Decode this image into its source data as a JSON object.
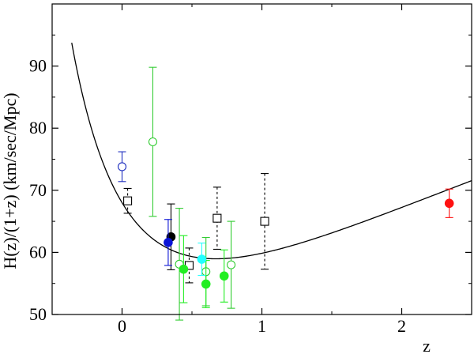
{
  "chart_data": {
    "type": "scatter",
    "title": "",
    "xlabel": "z",
    "ylabel": "H(z)/(1+z)  (km/sec/Mpc)",
    "xlim": [
      -0.5,
      2.5
    ],
    "ylim": [
      50,
      100
    ],
    "x_ticks": [
      0,
      1,
      2
    ],
    "y_ticks": [
      50,
      60,
      70,
      80,
      90
    ],
    "x_tick_labels": [
      "0",
      "1",
      "2"
    ],
    "y_tick_labels": [
      "50",
      "60",
      "70",
      "80",
      "90"
    ],
    "grid": false,
    "legend": "none",
    "model_curve": {
      "H0": 68,
      "Omega_m": 0.3,
      "x_start": -0.36,
      "x_end": 2.5,
      "color": "#000000"
    },
    "series": [
      {
        "marker": "open-circle",
        "color": "#1f2fbf",
        "errorbar": "solid",
        "points": [
          {
            "x": 0.0,
            "y": 73.8,
            "err": 2.4
          }
        ]
      },
      {
        "marker": "open-square",
        "color": "#000000",
        "errorbar": "dashed",
        "points": [
          {
            "x": 0.04,
            "y": 68.3,
            "err": 2.0
          },
          {
            "x": 0.48,
            "y": 57.9,
            "err": 2.8
          },
          {
            "x": 0.68,
            "y": 65.5,
            "err": 5.0
          },
          {
            "x": 1.02,
            "y": 65.0,
            "err": 7.7
          }
        ]
      },
      {
        "marker": "open-circle",
        "color": "#33cc33",
        "errorbar": "solid",
        "points": [
          {
            "x": 0.22,
            "y": 77.8,
            "err": 12.0
          },
          {
            "x": 0.41,
            "y": 58.1,
            "err": 9.0
          },
          {
            "x": 0.6,
            "y": 56.9,
            "err": 5.5
          },
          {
            "x": 0.78,
            "y": 58.0,
            "err": 7.0
          }
        ]
      },
      {
        "marker": "filled-circle",
        "color": "#000000",
        "errorbar": "solid",
        "points": [
          {
            "x": 0.35,
            "y": 62.5,
            "err": 5.3
          }
        ]
      },
      {
        "marker": "filled-circle",
        "color": "#0a14d6",
        "errorbar": "solid",
        "points": [
          {
            "x": 0.33,
            "y": 61.6,
            "err": 3.7
          }
        ]
      },
      {
        "marker": "filled-circle",
        "color": "#22ee22",
        "errorbar": "solid",
        "points": [
          {
            "x": 0.44,
            "y": 57.3,
            "err": 5.4
          },
          {
            "x": 0.6,
            "y": 54.9,
            "err": 3.8
          },
          {
            "x": 0.73,
            "y": 56.2,
            "err": 4.2
          }
        ]
      },
      {
        "marker": "filled-circle",
        "color": "#22ffff",
        "errorbar": "solid",
        "points": [
          {
            "x": 0.57,
            "y": 58.9,
            "err": 2.6
          }
        ]
      },
      {
        "marker": "filled-circle",
        "color": "#ff1111",
        "errorbar": "solid",
        "points": [
          {
            "x": 2.34,
            "y": 67.9,
            "err": 2.3
          }
        ]
      }
    ]
  }
}
